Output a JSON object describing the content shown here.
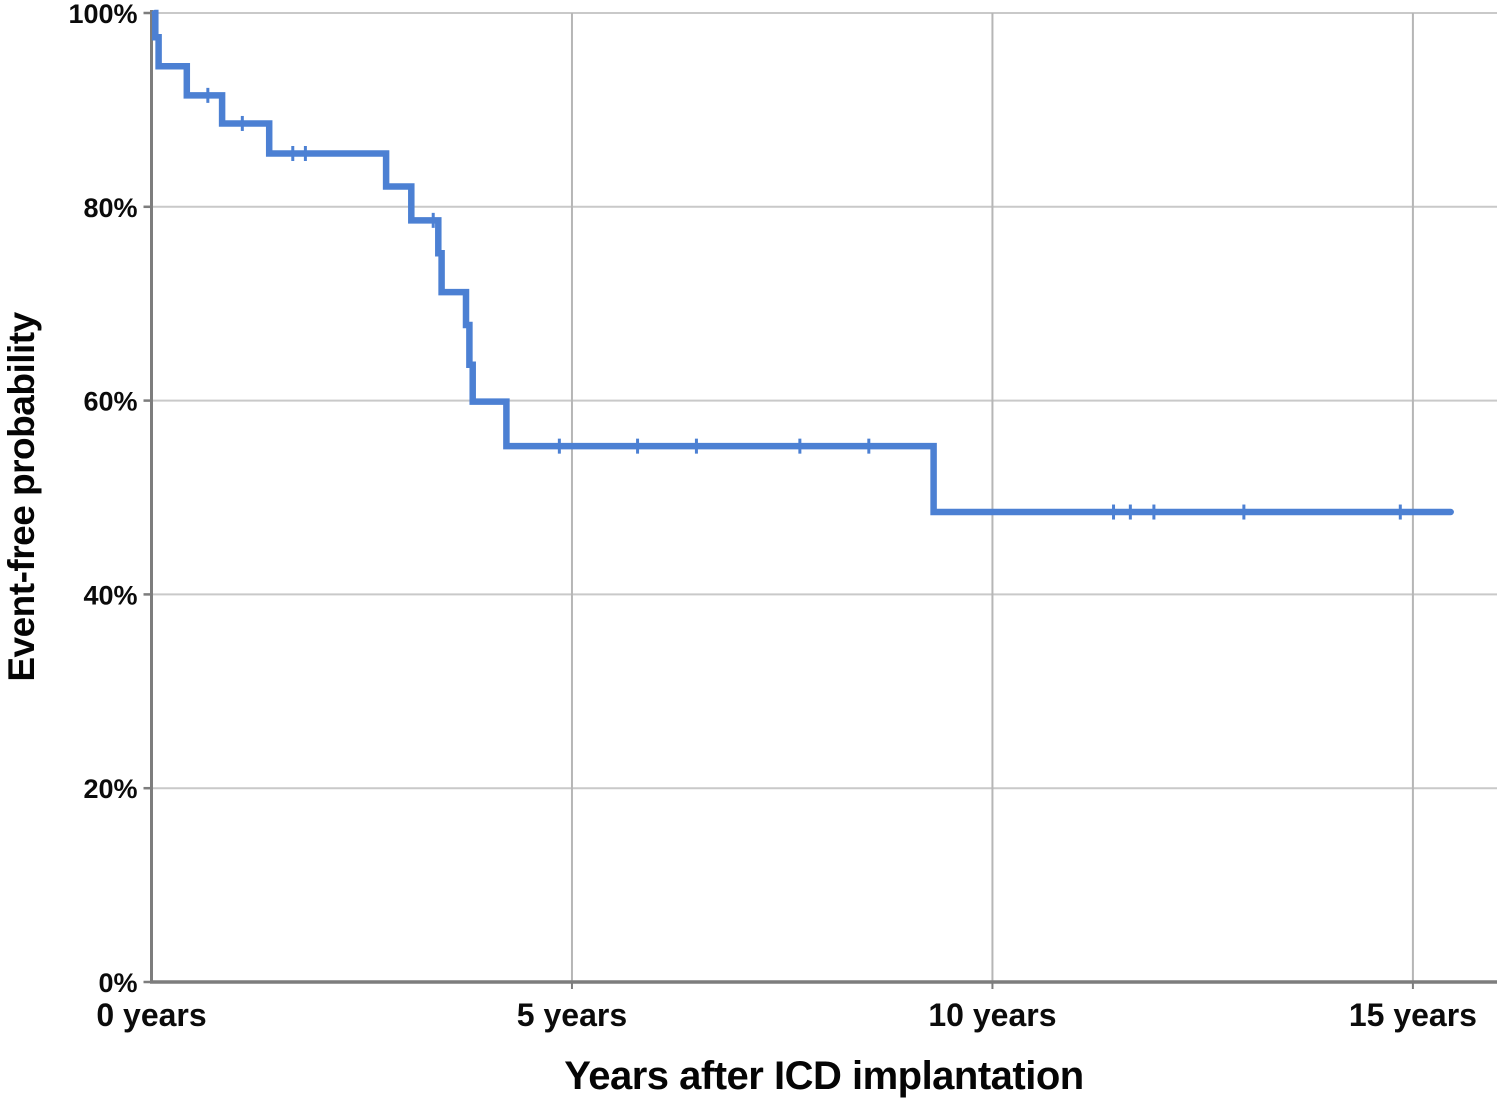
{
  "chart_data": {
    "type": "line",
    "subtype": "kaplan-meier-step-function",
    "title": "",
    "xlabel": "Years after ICD implantation",
    "ylabel": "Event-free probability",
    "xlim": [
      0,
      16
    ],
    "ylim": [
      0,
      100
    ],
    "grid": true,
    "legend": "none",
    "x_ticks": [
      {
        "value": 0,
        "label": "0 years"
      },
      {
        "value": 5,
        "label": "5 years"
      },
      {
        "value": 10,
        "label": "10 years"
      },
      {
        "value": 15,
        "label": "15 years"
      }
    ],
    "y_ticks": [
      {
        "value": 0,
        "label": "0%"
      },
      {
        "value": 20,
        "label": "20%"
      },
      {
        "value": 40,
        "label": "40%"
      },
      {
        "value": 60,
        "label": "60%"
      },
      {
        "value": 80,
        "label": "80%"
      },
      {
        "value": 100,
        "label": "100%"
      }
    ],
    "series": [
      {
        "name": "Event-free probability",
        "color": "#4c80d3",
        "line_width": 6.5,
        "end_t": 15.45,
        "steps": [
          {
            "t": 0.04,
            "p": 100
          },
          {
            "t": 0.045,
            "p": 97.5
          },
          {
            "t": 0.085,
            "p": 94.5
          },
          {
            "t": 0.42,
            "p": 91.5
          },
          {
            "t": 0.84,
            "p": 88.6
          },
          {
            "t": 1.4,
            "p": 85.5
          },
          {
            "t": 2.79,
            "p": 82.1
          },
          {
            "t": 3.09,
            "p": 78.6
          },
          {
            "t": 3.41,
            "p": 75.2
          },
          {
            "t": 3.45,
            "p": 71.2
          },
          {
            "t": 3.74,
            "p": 67.8
          },
          {
            "t": 3.78,
            "p": 63.7
          },
          {
            "t": 3.82,
            "p": 59.9
          },
          {
            "t": 4.22,
            "p": 55.3
          },
          {
            "t": 9.3,
            "p": 48.5
          }
        ],
        "censor_marks": [
          {
            "t": 0.67,
            "p": 91.5
          },
          {
            "t": 1.08,
            "p": 88.6
          },
          {
            "t": 1.68,
            "p": 85.5
          },
          {
            "t": 1.83,
            "p": 85.5
          },
          {
            "t": 3.35,
            "p": 78.6
          },
          {
            "t": 4.85,
            "p": 55.3
          },
          {
            "t": 5.78,
            "p": 55.3
          },
          {
            "t": 6.48,
            "p": 55.3
          },
          {
            "t": 7.71,
            "p": 55.3
          },
          {
            "t": 8.53,
            "p": 55.3
          },
          {
            "t": 11.44,
            "p": 48.5
          },
          {
            "t": 11.64,
            "p": 48.5
          },
          {
            "t": 11.92,
            "p": 48.5
          },
          {
            "t": 12.99,
            "p": 48.5
          },
          {
            "t": 14.85,
            "p": 48.5
          }
        ]
      }
    ],
    "colors": {
      "curve": "#4c80d3",
      "grid_horizontal": "#c9c9c9",
      "grid_vertical": "#b6b6b6",
      "axis": "#7d7d7d",
      "text": "#0b0b0b",
      "background": "#ffffff"
    }
  }
}
